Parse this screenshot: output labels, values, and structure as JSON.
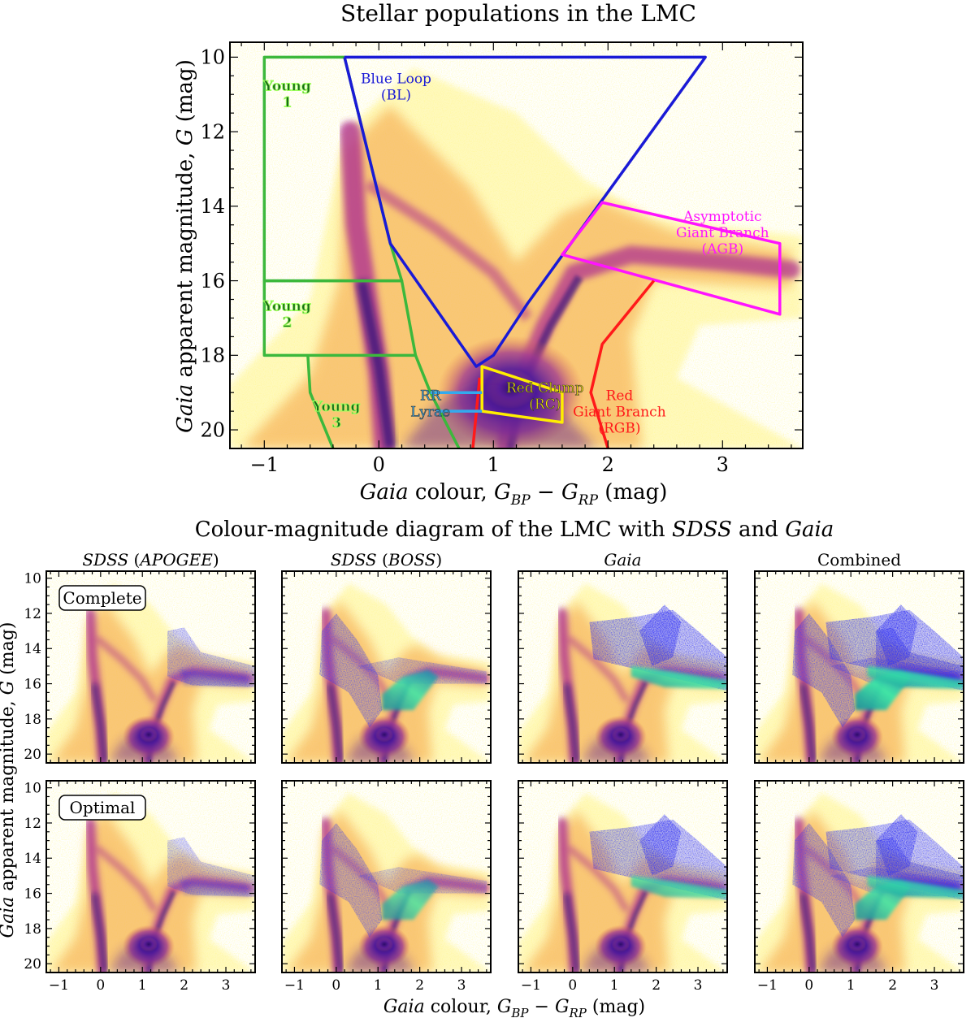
{
  "main": {
    "title": "Stellar populations in the LMC",
    "xlabel": {
      "italic": "Gaia",
      "rest": " colour, ",
      "math_main1": "G",
      "math_sub1": "BP",
      "math_minus": " − ",
      "math_main2": "G",
      "math_sub2": "RP",
      "units": " (mag)"
    },
    "ylabel": {
      "italic1": "Gaia",
      "rest": " apparent magnitude, ",
      "italic2": "G",
      "units": " (mag)"
    }
  },
  "grid_section": {
    "title": {
      "pre": "Colour-magnitude diagram of the LMC with ",
      "italic1": "SDSS",
      "mid": " and ",
      "italic2": "Gaia"
    },
    "column_titles": [
      {
        "italic": "SDSS",
        "rest": " (",
        "italic2": "APOGEE",
        "close": ")"
      },
      {
        "italic": "SDSS",
        "rest": " (",
        "italic2": "BOSS",
        "close": ")"
      },
      {
        "italic": "Gaia",
        "rest": "",
        "italic2": "",
        "close": ""
      },
      {
        "italic": "",
        "rest": "Combined",
        "italic2": "",
        "close": ""
      }
    ],
    "row_labels": [
      "Complete",
      "Optimal"
    ],
    "ylabel": {
      "italic": "Gaia",
      "rest": " apparent magnitude, ",
      "italic2": "G",
      "units": " (mag)"
    },
    "xlabel": {
      "italic": "Gaia",
      "rest": " colour, ",
      "math_main1": "G",
      "math_sub1": "BP",
      "math_minus": " − ",
      "math_main2": "G",
      "math_sub2": "RP",
      "units": " (mag)"
    }
  },
  "colors": {
    "young": "#3cb83c",
    "blue_loop": "#1a1ad6",
    "agb": "#ff14ff",
    "rgb": "#ff1a1a",
    "red_clump": "#ffee00",
    "rr_lyrae": "#33aaee",
    "density_dark": "#2a0a7a",
    "density_mid": "#b03090",
    "density_light": "#f5a040",
    "density_pale": "#ffee44",
    "overlay_blue": "#1010ee",
    "overlay_green": "#30e0a0"
  },
  "chart_data": [
    {
      "type": "scatter",
      "title": "Stellar populations in the LMC",
      "xlabel": "Gaia colour, G_BP − G_RP (mag)",
      "ylabel": "Gaia apparent magnitude, G (mag)",
      "xlim": [
        -1.3,
        3.7
      ],
      "ylim": [
        20.5,
        9.6
      ],
      "xticks": [
        -1,
        0,
        1,
        2,
        3
      ],
      "yticks": [
        10,
        12,
        14,
        16,
        18,
        20
      ],
      "regions": [
        {
          "name": "Young 1",
          "label_lines": [
            "Young",
            "1"
          ],
          "label_pos": [
            -0.8,
            10.9
          ],
          "label_color": "#1a6a1a",
          "stroke": "#3cb83c",
          "polygon": [
            [
              -1.0,
              10.0
            ],
            [
              -0.3,
              10.0
            ],
            [
              0.1,
              15.0
            ],
            [
              0.2,
              16.0
            ],
            [
              -1.0,
              16.0
            ]
          ]
        },
        {
          "name": "Young 2",
          "label_lines": [
            "Young",
            "2"
          ],
          "label_pos": [
            -0.8,
            16.8
          ],
          "label_color": "#1a6a1a",
          "stroke": "#3cb83c",
          "polygon": [
            [
              -1.0,
              16.0
            ],
            [
              0.2,
              16.0
            ],
            [
              0.32,
              18.0
            ],
            [
              -1.0,
              18.0
            ]
          ]
        },
        {
          "name": "Young 3",
          "label_lines": [
            "Young",
            "3"
          ],
          "label_pos": [
            -0.37,
            19.5
          ],
          "label_color": "#1a6a1a",
          "stroke": "#3cb83c",
          "polyline": [
            [
              -0.62,
              18.0
            ],
            [
              -0.6,
              19.0
            ],
            [
              -0.4,
              20.5
            ]
          ],
          "polyline2": [
            [
              0.32,
              18.0
            ],
            [
              0.45,
              19.0
            ],
            [
              0.7,
              20.5
            ]
          ]
        },
        {
          "name": "Blue Loop",
          "label_lines": [
            "Blue Loop",
            "(BL)"
          ],
          "label_pos": [
            0.15,
            10.7
          ],
          "label_color": "#1a1ad6",
          "stroke": "#1a1ad6",
          "polyline": [
            [
              -0.3,
              10.0
            ],
            [
              2.85,
              10.0
            ],
            [
              1.3,
              16.6
            ],
            [
              1.0,
              18.0
            ],
            [
              0.85,
              18.3
            ],
            [
              0.1,
              15.0
            ],
            [
              -0.3,
              10.0
            ]
          ]
        },
        {
          "name": "Asymptotic Giant Branch",
          "label_lines": [
            "Asymptotic",
            "Giant Branch",
            "(AGB)"
          ],
          "label_pos": [
            3.0,
            14.4
          ],
          "label_color": "#ff14ff",
          "stroke": "#ff14ff",
          "polygon": [
            [
              1.95,
              13.9
            ],
            [
              3.5,
              15.0
            ],
            [
              3.5,
              16.9
            ],
            [
              1.6,
              15.3
            ]
          ]
        },
        {
          "name": "Red Giant Branch",
          "label_lines": [
            "Red",
            "Giant Branch",
            "(RGB)"
          ],
          "label_pos": [
            2.1,
            19.2
          ],
          "label_color": "#ff1a1a",
          "stroke": "#ff1a1a",
          "polyline": [
            [
              2.4,
              16.0
            ],
            [
              1.95,
              17.7
            ],
            [
              1.85,
              19.0
            ],
            [
              2.0,
              20.5
            ]
          ],
          "polyline2": [
            [
              0.88,
              18.6
            ],
            [
              0.82,
              20.5
            ]
          ]
        },
        {
          "name": "Red Clump",
          "label_lines": [
            "Red Clump",
            "(RC)"
          ],
          "label_pos": [
            1.45,
            19.0
          ],
          "label_color": "#ffee00",
          "stroke": "#ffee00",
          "polygon": [
            [
              0.9,
              18.3
            ],
            [
              1.6,
              19.0
            ],
            [
              1.6,
              19.8
            ],
            [
              0.9,
              19.5
            ]
          ]
        },
        {
          "name": "RR Lyrae",
          "label_lines": [
            "RR",
            "Lyrae"
          ],
          "label_pos": [
            0.45,
            19.2
          ],
          "label_color": "#33aaee",
          "stroke": "#33aaee",
          "polyline": [
            [
              0.45,
              19.0
            ],
            [
              0.9,
              19.0
            ]
          ],
          "polyline2": [
            [
              0.5,
              19.5
            ],
            [
              0.9,
              19.5
            ]
          ]
        }
      ]
    },
    {
      "type": "scatter",
      "title": "Colour-magnitude diagram of the LMC with SDSS and Gaia",
      "xlim": [
        -1.3,
        3.7
      ],
      "ylim": [
        20.5,
        9.6
      ],
      "xticks": [
        -1,
        0,
        1,
        2,
        3
      ],
      "yticks": [
        10,
        12,
        14,
        16,
        18,
        20
      ],
      "panels": [
        {
          "row": "Complete",
          "column": "SDSS (APOGEE)",
          "overlay": "agb",
          "density": 0.7
        },
        {
          "row": "Complete",
          "column": "SDSS (BOSS)",
          "overlay": "rgb_young",
          "density": 0.9
        },
        {
          "row": "Complete",
          "column": "Gaia",
          "overlay": "agb_bright",
          "density": 1.0
        },
        {
          "row": "Complete",
          "column": "Combined",
          "overlay": "all",
          "density": 1.0
        },
        {
          "row": "Optimal",
          "column": "SDSS (APOGEE)",
          "overlay": "agb",
          "density": 0.6
        },
        {
          "row": "Optimal",
          "column": "SDSS (BOSS)",
          "overlay": "rgb_young",
          "density": 0.8
        },
        {
          "row": "Optimal",
          "column": "Gaia",
          "overlay": "agb_bright",
          "density": 0.9
        },
        {
          "row": "Optimal",
          "column": "Combined",
          "overlay": "all",
          "density": 0.9
        }
      ]
    }
  ]
}
